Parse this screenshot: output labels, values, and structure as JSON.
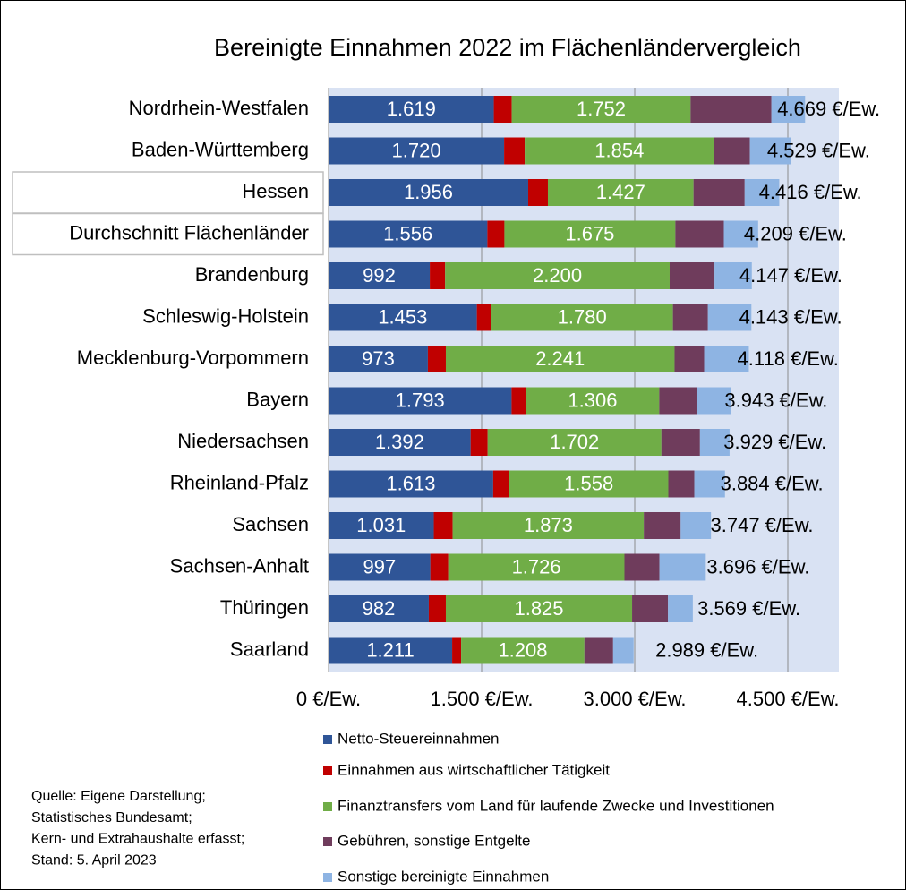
{
  "chart_data": {
    "type": "stacked_barh",
    "title": "Bereinigte Einnahmen 2022 im Flächenländervergleich",
    "categories": [
      "Nordrhein-Westfalen",
      "Baden-Württemberg",
      "Hessen",
      "Durchschnitt Flächenländer",
      "Brandenburg",
      "Schleswig-Holstein",
      "Mecklenburg-Vorpommern",
      "Bayern",
      "Niedersachsen",
      "Rheinland-Pfalz",
      "Sachsen",
      "Sachsen-Anhalt",
      "Thüringen",
      "Saarland"
    ],
    "highlighted": [
      "Hessen",
      "Durchschnitt Flächenländer"
    ],
    "series": [
      {
        "name": "Netto-Steuereinnahmen",
        "color": "#2f5597",
        "values": [
          1619,
          1720,
          1956,
          1556,
          992,
          1453,
          973,
          1793,
          1392,
          1613,
          1031,
          997,
          982,
          1211
        ],
        "value_labels": [
          "1.619",
          "1.720",
          "1.956",
          "1.556",
          "992",
          "1.453",
          "973",
          "1.793",
          "1.392",
          "1.613",
          "1.031",
          "997",
          "982",
          "1.211"
        ]
      },
      {
        "name": "Einnahmen aus wirtschaftlicher Tätigkeit",
        "color": "#c00000",
        "values": [
          176,
          202,
          193,
          167,
          150,
          141,
          176,
          141,
          167,
          158,
          185,
          176,
          167,
          88
        ]
      },
      {
        "name": "Finanztransfers vom Land für laufende Zwecke und Investitionen",
        "color": "#70ad47",
        "values": [
          1752,
          1854,
          1427,
          1675,
          2200,
          1780,
          2241,
          1306,
          1702,
          1558,
          1873,
          1726,
          1825,
          1208
        ],
        "value_labels": [
          "1.752",
          "1.854",
          "1.427",
          "1.675",
          "2.200",
          "1.780",
          "2.241",
          "1.306",
          "1.702",
          "1.558",
          "1.873",
          "1.726",
          "1.825",
          "1.208"
        ]
      },
      {
        "name": "Gebühren, sonstige Entgelte",
        "color": "#6f3c5c",
        "values": [
          792,
          352,
          501,
          475,
          440,
          343,
          290,
          369,
          378,
          255,
          361,
          343,
          352,
          281
        ]
      },
      {
        "name": "Sonstige bereinigte Einnahmen",
        "color": "#8eb4e3",
        "values": [
          330,
          401,
          339,
          336,
          365,
          426,
          438,
          334,
          290,
          300,
          297,
          454,
          243,
          201
        ]
      }
    ],
    "totals": {
      "values": [
        4669,
        4529,
        4416,
        4209,
        4147,
        4143,
        4118,
        3943,
        3929,
        3884,
        3747,
        3696,
        3569,
        2989
      ],
      "value_labels": [
        "4.669 €/Ew.",
        "4.529 €/Ew.",
        "4.416 €/Ew.",
        "4.209 €/Ew.",
        "4.147 €/Ew.",
        "4.143 €/Ew.",
        "4.118 €/Ew.",
        "3.943 €/Ew.",
        "3.929 €/Ew.",
        "3.884 €/Ew.",
        "3.747 €/Ew.",
        "3.696 €/Ew.",
        "3.569 €/Ew.",
        "2.989 €/Ew."
      ]
    },
    "xlim": [
      0,
      5000
    ],
    "xticks": [
      {
        "value": 0,
        "label": "0 €/Ew."
      },
      {
        "value": 1500,
        "label": "1.500 €/Ew."
      },
      {
        "value": 3000,
        "label": "3.000 €/Ew."
      },
      {
        "value": 4500,
        "label": "4.500 €/Ew."
      }
    ],
    "grid": true,
    "source": [
      "Quelle: Eigene Darstellung;",
      "Statistisches Bundesamt;",
      "Kern- und Extrahaushalte erfasst;",
      "Stand: 5. April 2023"
    ]
  }
}
